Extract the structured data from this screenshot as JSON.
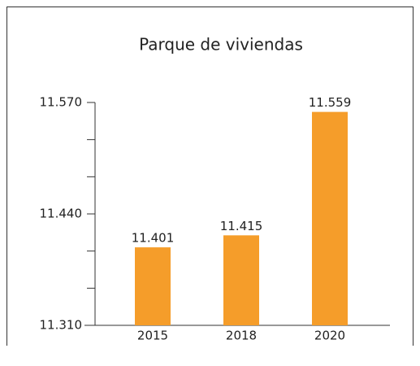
{
  "chart_data": {
    "type": "bar",
    "title": "Parque de viviendas",
    "categories": [
      "2015",
      "2018",
      "2020"
    ],
    "values": [
      11401,
      11415,
      11559
    ],
    "value_labels": [
      "11.401",
      "11.415",
      "11.559"
    ],
    "color": "#f59d2a",
    "ylim": [
      11310,
      11570
    ],
    "yticks": [
      {
        "value": 11310,
        "label": "11.310"
      },
      {
        "value": 11440,
        "label": "11.440"
      },
      {
        "value": 11570,
        "label": "11.570"
      }
    ],
    "minor_yticks": [
      11353.33,
      11396.67,
      11483.33,
      11526.67
    ]
  }
}
